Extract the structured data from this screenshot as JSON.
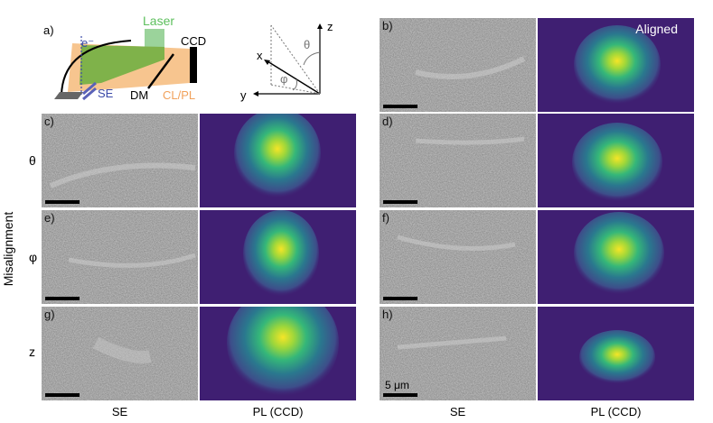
{
  "schematic": {
    "panel_label": "a)",
    "laser_label": "Laser",
    "ccd_label": "CCD",
    "electron_label": "e⁻",
    "se_label": "SE",
    "dm_label": "DM",
    "clpl_label": "CL/PL"
  },
  "axes_diagram": {
    "x": "x",
    "y": "y",
    "z": "z",
    "theta": "θ",
    "phi": "φ"
  },
  "row_labels": {
    "theta": "θ",
    "phi": "φ",
    "z": "z",
    "misalignment": "Misalignment"
  },
  "panels": {
    "b": "b)",
    "c": "c)",
    "d": "d)",
    "e": "e)",
    "f": "f)",
    "g": "g)",
    "h": "h)"
  },
  "aligned_label": "Aligned",
  "inset_axes": {
    "x": "x",
    "y": "y"
  },
  "scalebar_label": "5 μm",
  "column_labels": {
    "se_left": "SE",
    "pl_left": "PL (CCD)",
    "se_right": "SE",
    "pl_right": "PL (CCD)"
  },
  "colors": {
    "pl_background": "#3f1f72",
    "se_background": "#8d8d8d",
    "laser": "#9bd39b",
    "clpl": "#f7c58f"
  }
}
